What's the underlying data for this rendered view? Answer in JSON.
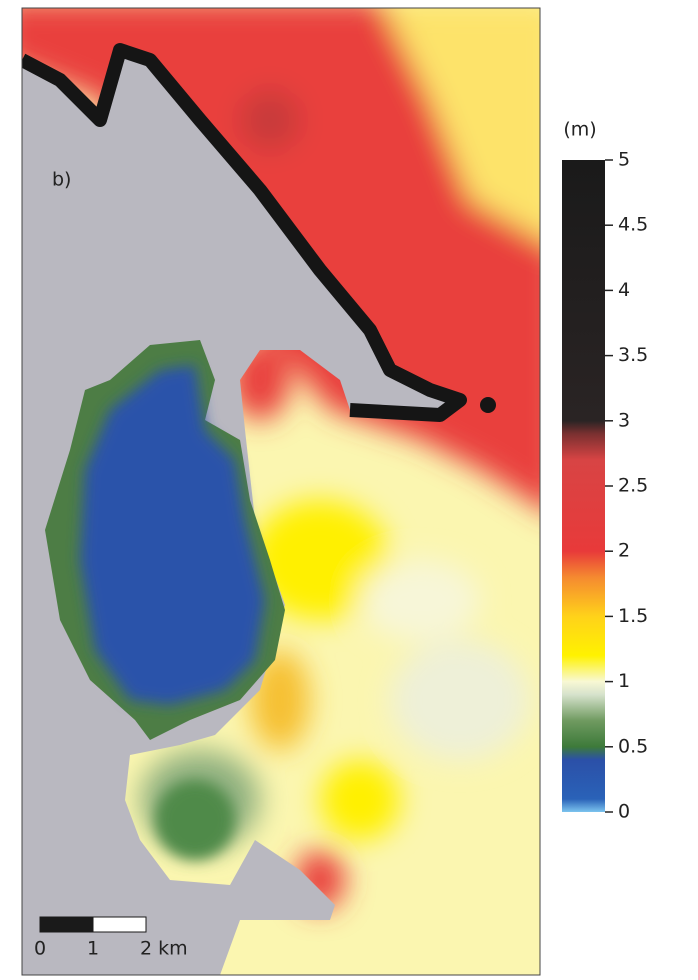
{
  "panel_label": "b)",
  "colorbar": {
    "label": "(m)",
    "lim": [
      0,
      5
    ],
    "ticks": [
      0,
      0.5,
      1,
      1.5,
      2,
      2.5,
      3,
      3.5,
      4,
      4.5,
      5
    ]
  },
  "scale_bar": {
    "labels": [
      "0",
      "1",
      "2 km"
    ]
  }
}
